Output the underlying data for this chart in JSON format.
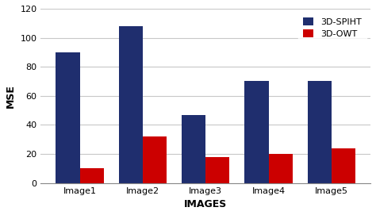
{
  "categories": [
    "Image1",
    "Image2",
    "Image3",
    "Image4",
    "Image5"
  ],
  "spiht_values": [
    90,
    108,
    47,
    70,
    70
  ],
  "owt_values": [
    10,
    32,
    18,
    20,
    24
  ],
  "spiht_color": "#1F2E6E",
  "owt_color": "#CC0000",
  "xlabel": "IMAGES",
  "ylabel": "MSE",
  "ylim": [
    0,
    120
  ],
  "yticks": [
    0,
    20,
    40,
    60,
    80,
    100,
    120
  ],
  "legend_labels": [
    "3D-SPIHT",
    "3D-OWT"
  ],
  "bar_width": 0.38,
  "background_color": "#ffffff",
  "plot_bg_color": "#ffffff",
  "grid_color": "#c8c8c8",
  "xlabel_fontsize": 9,
  "ylabel_fontsize": 9,
  "tick_fontsize": 8,
  "legend_fontsize": 8
}
